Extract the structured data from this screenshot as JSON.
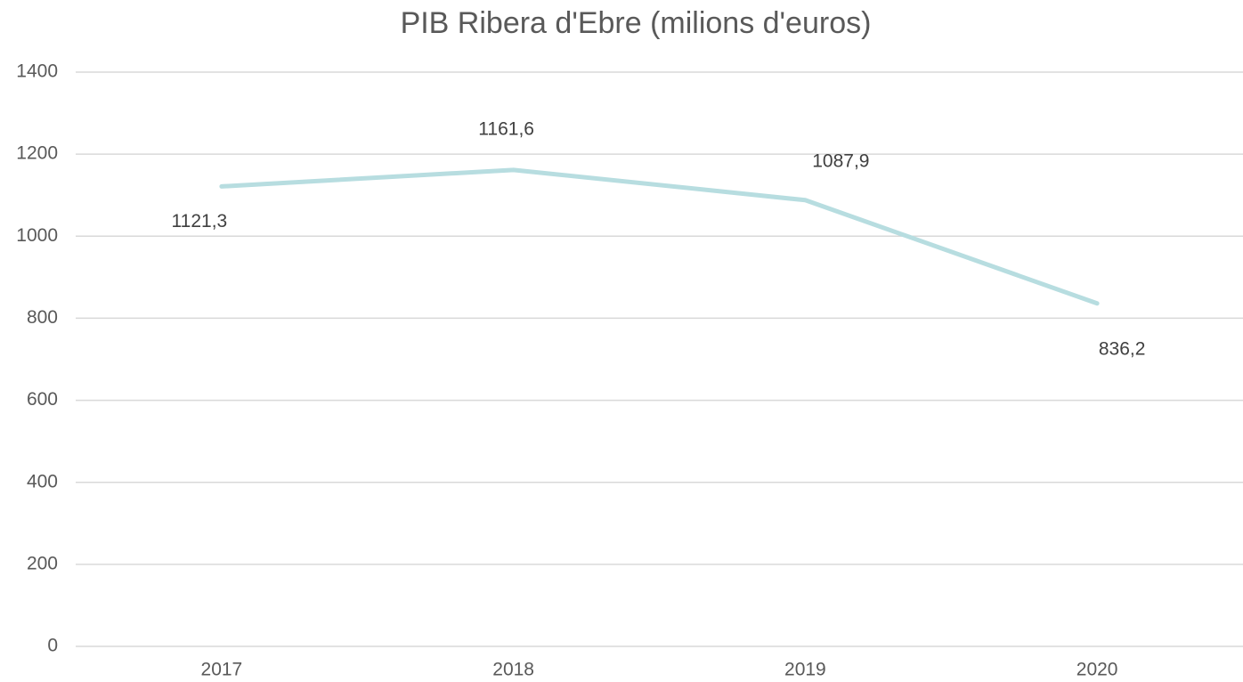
{
  "chart_data": {
    "type": "line",
    "title": "PIB Ribera d'Ebre (milions d'euros)",
    "categories": [
      "2017",
      "2018",
      "2019",
      "2020"
    ],
    "values": [
      1121.3,
      1161.6,
      1087.9,
      836.2
    ],
    "value_labels": [
      "1121,3",
      "1161,6",
      "1087,9",
      "836,2"
    ],
    "color": "#b7dde0",
    "ylim": [
      0,
      1400
    ],
    "yticks": [
      0,
      200,
      400,
      600,
      800,
      1000,
      1200,
      1400
    ],
    "grid": true
  }
}
